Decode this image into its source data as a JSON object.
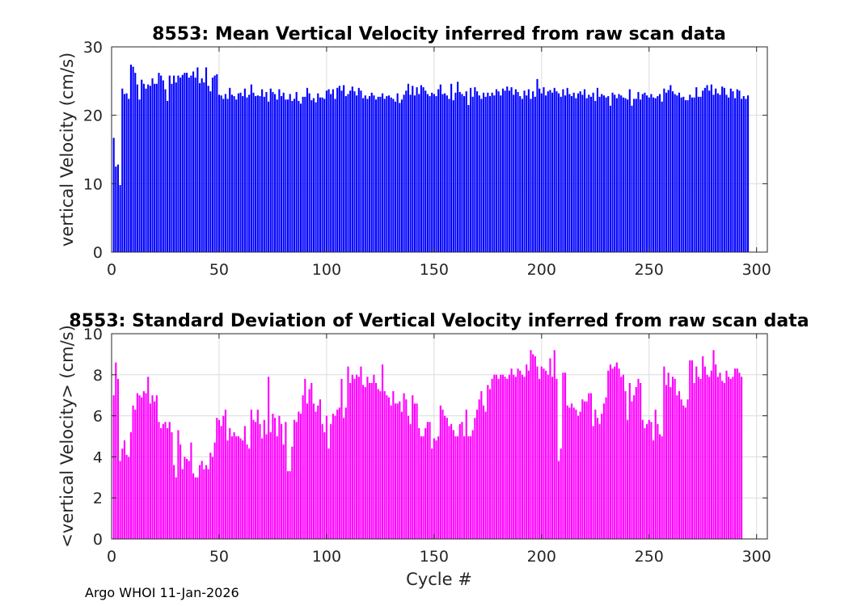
{
  "chart_data": [
    {
      "type": "bar",
      "title": "8553: Mean Vertical Velocity inferred from raw scan data",
      "xlabel": "",
      "ylabel": "vertical Velocity (cm/s)",
      "xlim": [
        0,
        305
      ],
      "ylim": [
        0,
        30
      ],
      "xticks": [
        0,
        50,
        100,
        150,
        200,
        250,
        300
      ],
      "yticks": [
        0,
        10,
        20,
        30
      ],
      "grid": true,
      "color": "#0000ff",
      "x_start": 1,
      "values": [
        16.7,
        12.5,
        12.8,
        9.8,
        23.9,
        23.1,
        23.2,
        22.4,
        27.4,
        27.1,
        26.2,
        24.5,
        22.3,
        25.2,
        24.6,
        23.9,
        24.5,
        24.3,
        25.4,
        24.6,
        24.6,
        26.2,
        25.8,
        25.1,
        23.8,
        22.1,
        25.8,
        24.6,
        25.8,
        24.8,
        25.8,
        25.5,
        25.9,
        26.2,
        26.2,
        25.5,
        25.8,
        26.4,
        25.5,
        27.0,
        24.7,
        25.4,
        24.8,
        27.0,
        24.3,
        23.5,
        25.5,
        25.8,
        26.0,
        23.0,
        22.9,
        22.4,
        23.1,
        22.4,
        24.0,
        23.0,
        22.8,
        22.3,
        23.2,
        23.3,
        22.8,
        23.9,
        22.6,
        23.0,
        24.5,
        23.3,
        22.8,
        22.9,
        22.8,
        23.8,
        22.7,
        23.4,
        22.0,
        23.9,
        23.4,
        23.1,
        22.3,
        23.8,
        22.8,
        23.3,
        22.3,
        22.3,
        23.1,
        22.1,
        22.4,
        23.4,
        22.1,
        21.7,
        22.7,
        22.7,
        24.0,
        23.2,
        22.2,
        22.5,
        21.9,
        23.2,
        22.6,
        22.6,
        22.4,
        23.6,
        23.8,
        23.1,
        23.8,
        22.4,
        24.0,
        24.3,
        23.6,
        24.4,
        22.8,
        23.1,
        23.6,
        24.2,
        23.5,
        22.9,
        24.0,
        23.6,
        22.5,
        22.9,
        22.4,
        22.8,
        23.3,
        22.9,
        22.3,
        22.7,
        22.7,
        23.2,
        22.4,
        22.8,
        22.9,
        22.6,
        22.4,
        22.0,
        23.2,
        21.8,
        22.3,
        23.0,
        23.6,
        24.6,
        23.0,
        24.3,
        22.9,
        24.1,
        23.1,
        24.4,
        24.1,
        23.6,
        23.1,
        22.8,
        23.3,
        23.1,
        22.8,
        23.8,
        24.5,
        23.1,
        23.2,
        22.9,
        22.4,
        24.6,
        22.2,
        23.3,
        24.9,
        23.4,
        23.1,
        22.8,
        23.5,
        21.5,
        24.0,
        22.7,
        24.1,
        23.5,
        22.9,
        22.4,
        23.3,
        22.7,
        23.3,
        22.8,
        23.3,
        22.9,
        23.8,
        23.5,
        22.9,
        23.9,
        23.6,
        24.2,
        23.6,
        24.1,
        23.0,
        23.8,
        23.4,
        22.8,
        22.4,
        23.6,
        22.9,
        23.8,
        22.4,
        23.5,
        22.7,
        25.3,
        23.9,
        23.2,
        24.1,
        22.9,
        23.5,
        23.7,
        23.3,
        24.0,
        23.5,
        23.2,
        22.7,
        23.8,
        22.9,
        24.0,
        23.1,
        22.8,
        23.3,
        22.5,
        23.2,
        23.5,
        23.0,
        23.8,
        22.5,
        23.0,
        22.7,
        23.3,
        22.1,
        24.0,
        22.7,
        23.1,
        22.9,
        22.6,
        22.8,
        21.4,
        23.3,
        23.0,
        22.5,
        23.1,
        22.9,
        22.6,
        22.5,
        22.3,
        23.8,
        21.4,
        22.4,
        22.4,
        23.4,
        22.3,
        23.1,
        23.3,
        22.9,
        22.6,
        23.1,
        22.6,
        22.5,
        22.8,
        23.1,
        22.0,
        23.9,
        23.3,
        23.7,
        24.4,
        23.5,
        23.1,
        22.9,
        23.3,
        22.6,
        22.7,
        22.2,
        22.2,
        23.0,
        22.6,
        22.6,
        24.1,
        22.7,
        22.7,
        23.6,
        24.0,
        24.4,
        23.6,
        24.5,
        23.0,
        23.9,
        23.2,
        23.0,
        24.2,
        24.0,
        23.0,
        22.6,
        23.9,
        23.5,
        22.5,
        23.8,
        23.6,
        22.4,
        22.8,
        22.4,
        22.9
      ]
    },
    {
      "type": "bar",
      "title": "8553: Standard Deviation of Vertical Velocity inferred from raw scan data",
      "xlabel": "Cycle #",
      "ylabel": "<vertical Velocity> (cm/s)",
      "xlim": [
        0,
        305
      ],
      "ylim": [
        0,
        10
      ],
      "xticks": [
        0,
        50,
        100,
        150,
        200,
        250,
        300
      ],
      "yticks": [
        0,
        2,
        4,
        6,
        8,
        10
      ],
      "grid": true,
      "color": "#ff00ff",
      "x_start": 1,
      "values": [
        7.0,
        8.6,
        7.8,
        3.8,
        4.4,
        4.8,
        4.1,
        4.0,
        5.2,
        6.5,
        6.3,
        7.1,
        7.0,
        6.9,
        7.2,
        7.1,
        7.9,
        6.6,
        7.0,
        6.7,
        7.0,
        5.7,
        5.4,
        5.6,
        5.7,
        5.4,
        5.7,
        5.2,
        3.6,
        3.0,
        5.3,
        4.6,
        3.4,
        4.0,
        3.9,
        3.8,
        4.7,
        3.2,
        3.0,
        3.0,
        3.6,
        3.8,
        3.4,
        3.6,
        3.4,
        4.2,
        4.0,
        4.7,
        5.9,
        5.8,
        5.5,
        6.0,
        6.3,
        4.8,
        5.4,
        5.0,
        5.2,
        5.0,
        5.0,
        4.9,
        4.8,
        5.5,
        4.6,
        4.4,
        6.3,
        5.8,
        5.7,
        6.3,
        5.6,
        4.9,
        5.8,
        5.1,
        7.9,
        5.2,
        6.1,
        5.9,
        5.0,
        6.0,
        5.6,
        4.6,
        5.7,
        3.3,
        3.3,
        4.5,
        5.8,
        5.7,
        6.2,
        6.1,
        7.0,
        7.8,
        6.6,
        7.3,
        7.6,
        6.6,
        6.2,
        6.5,
        6.8,
        5.6,
        5.2,
        6.0,
        4.4,
        5.6,
        6.1,
        6.0,
        6.3,
        6.4,
        7.8,
        5.9,
        6.4,
        8.4,
        7.6,
        8.0,
        7.8,
        8.0,
        7.9,
        8.4,
        7.5,
        7.4,
        7.9,
        7.6,
        7.6,
        8.0,
        7.6,
        7.3,
        7.2,
        8.5,
        7.2,
        7.0,
        6.9,
        6.5,
        7.2,
        6.6,
        6.6,
        6.7,
        6.2,
        7.1,
        6.8,
        6.0,
        5.6,
        7.0,
        6.6,
        6.6,
        5.4,
        5.0,
        5.0,
        5.4,
        5.7,
        5.7,
        4.4,
        4.9,
        4.8,
        5.0,
        6.5,
        6.3,
        6.0,
        5.9,
        5.5,
        5.6,
        5.3,
        5.0,
        5.0,
        5.6,
        5.7,
        5.0,
        6.3,
        5.0,
        5.0,
        5.3,
        5.9,
        6.3,
        6.8,
        7.2,
        6.5,
        6.2,
        7.5,
        7.3,
        7.8,
        8.0,
        8.0,
        7.8,
        8.0,
        8.0,
        7.9,
        7.8,
        8.0,
        8.3,
        8.0,
        7.9,
        8.3,
        8.2,
        8.0,
        7.9,
        8.5,
        8.2,
        9.2,
        9.0,
        8.9,
        8.4,
        7.8,
        8.4,
        8.3,
        8.2,
        8.0,
        8.8,
        7.9,
        9.2,
        7.8,
        3.8,
        4.4,
        8.1,
        8.1,
        6.5,
        6.4,
        6.6,
        6.4,
        6.3,
        6.0,
        6.2,
        6.8,
        6.7,
        6.7,
        7.1,
        7.1,
        5.5,
        6.3,
        5.9,
        5.6,
        6.1,
        6.6,
        6.9,
        8.2,
        8.5,
        8.3,
        8.4,
        8.6,
        8.3,
        7.9,
        8.0,
        7.2,
        5.8,
        7.6,
        6.7,
        7.0,
        7.4,
        7.8,
        7.6,
        5.8,
        5.4,
        5.6,
        5.8,
        5.7,
        4.8,
        6.3,
        5.6,
        5.1,
        5.0,
        8.4,
        7.5,
        8.1,
        7.4,
        7.9,
        7.8,
        7.0,
        7.2,
        6.8,
        6.5,
        6.4,
        6.8,
        8.7,
        8.7,
        7.6,
        8.4,
        7.9,
        7.8,
        8.9,
        8.4,
        8.0,
        7.9,
        8.2,
        9.2,
        8.5,
        7.9,
        8.1,
        7.7,
        7.6,
        8.2,
        7.9,
        7.8,
        7.9,
        8.3,
        8.3,
        8.1,
        7.9
      ]
    }
  ],
  "footer": {
    "text": "Argo WHOI 11-Jan-2026"
  }
}
